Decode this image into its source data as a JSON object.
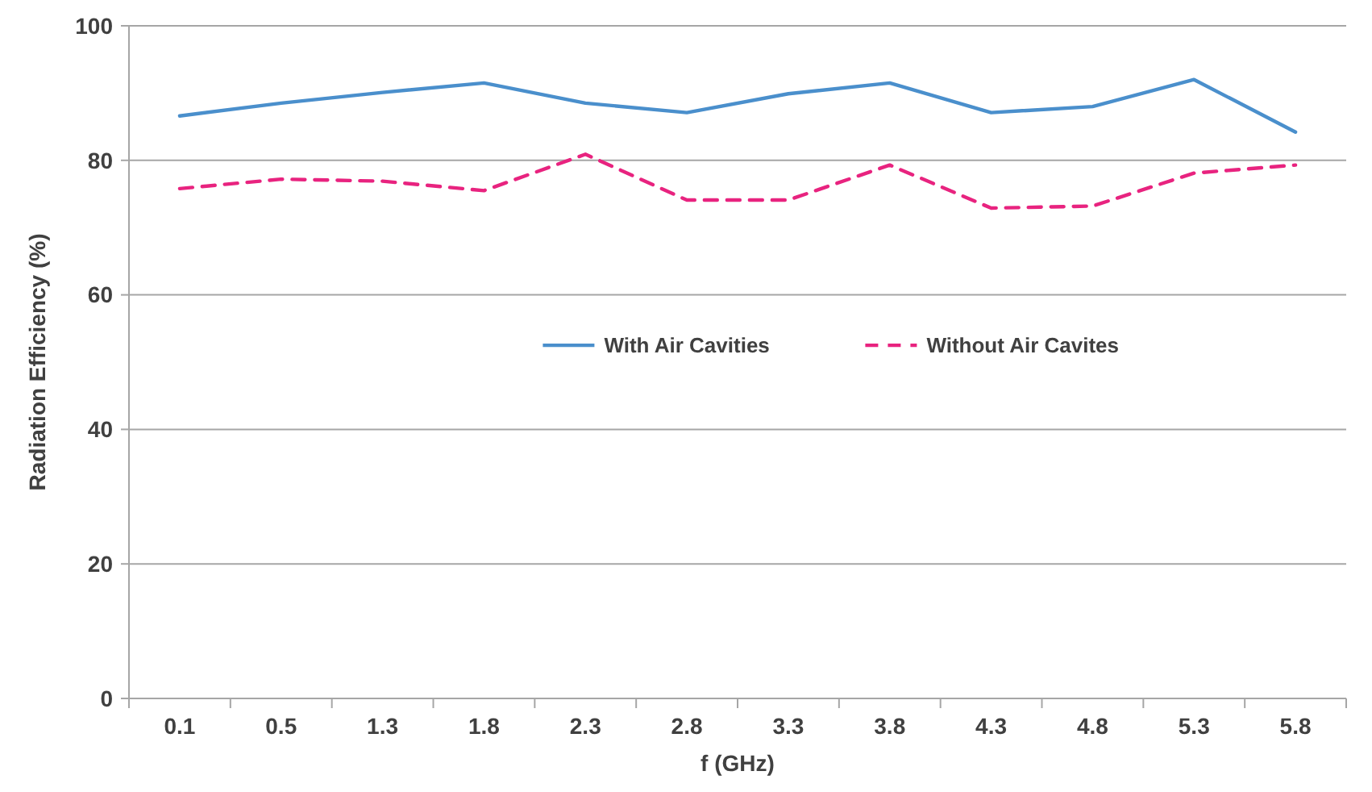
{
  "chart_data": {
    "type": "line",
    "xlabel": "f (GHz)",
    "ylabel": "Radiation Efficiency (%)",
    "categories": [
      "0.1",
      "0.5",
      "1.3",
      "1.8",
      "2.3",
      "2.8",
      "3.3",
      "3.8",
      "4.3",
      "4.8",
      "5.3",
      "5.8"
    ],
    "series": [
      {
        "name": "With Air Cavities",
        "color": "#4a8fcc",
        "line_style": "solid",
        "values": [
          86.6,
          88.5,
          90.1,
          91.5,
          88.5,
          87.1,
          89.9,
          91.5,
          87.1,
          88.0,
          92.0,
          84.2
        ]
      },
      {
        "name": "Without Air Cavites",
        "color": "#e8237f",
        "line_style": "dashed",
        "values": [
          75.8,
          77.2,
          76.9,
          75.5,
          80.9,
          74.1,
          74.1,
          79.3,
          72.9,
          73.2,
          78.1,
          79.3
        ]
      }
    ],
    "ylim": [
      0,
      100
    ],
    "yticks": [
      0,
      20,
      40,
      60,
      80,
      100
    ],
    "grid": "y",
    "legend": "center",
    "marker": "none"
  }
}
